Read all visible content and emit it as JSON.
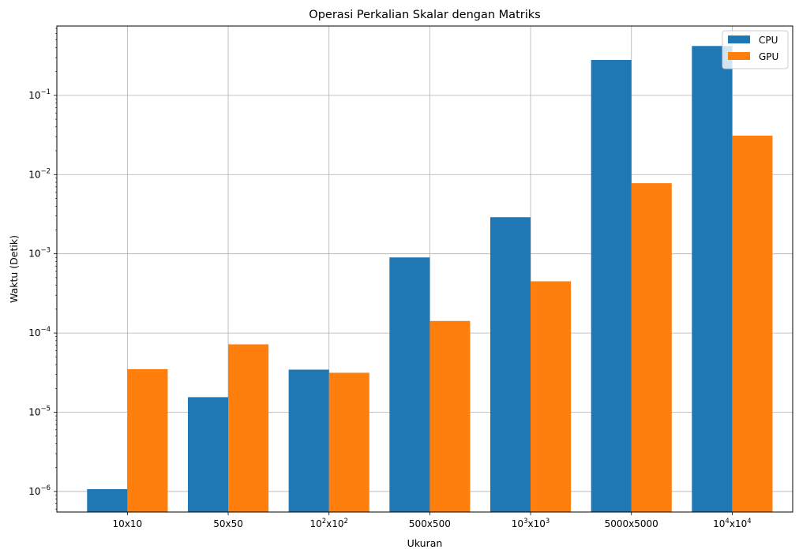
{
  "chart_data": {
    "type": "bar",
    "title": "Operasi Perkalian Skalar dengan Matriks",
    "xlabel": "Ukuran",
    "ylabel": "Waktu (Detik)",
    "yscale": "log",
    "ylim": [
      5.5e-07,
      0.75
    ],
    "grid": true,
    "legend_position": "top-right",
    "categories": [
      {
        "base": "10x10"
      },
      {
        "base": "50x50"
      },
      {
        "base": "10",
        "sup1": "2",
        "mid": "x10",
        "sup2": "2"
      },
      {
        "base": "500x500"
      },
      {
        "base": "10",
        "sup1": "3",
        "mid": "x10",
        "sup2": "3"
      },
      {
        "base": "5000x5000"
      },
      {
        "base": "10",
        "sup1": "4",
        "mid": "x10",
        "sup2": "4"
      }
    ],
    "y_ticks": [
      {
        "exp": -6,
        "base": "10",
        "sup": "−6"
      },
      {
        "exp": -5,
        "base": "10",
        "sup": "−5"
      },
      {
        "exp": -4,
        "base": "10",
        "sup": "−4"
      },
      {
        "exp": -3,
        "base": "10",
        "sup": "−3"
      },
      {
        "exp": -2,
        "base": "10",
        "sup": "−2"
      },
      {
        "exp": -1,
        "base": "10",
        "sup": "−1"
      }
    ],
    "series": [
      {
        "name": "CPU",
        "color": "#1f77b4",
        "values": [
          1.07e-06,
          1.55e-05,
          3.45e-05,
          0.0009,
          0.0029,
          0.28,
          0.42
        ]
      },
      {
        "name": "GPU",
        "color": "#ff7f0e",
        "values": [
          3.5e-05,
          7.2e-05,
          3.15e-05,
          0.000142,
          0.00045,
          0.0078,
          0.031
        ]
      }
    ]
  }
}
